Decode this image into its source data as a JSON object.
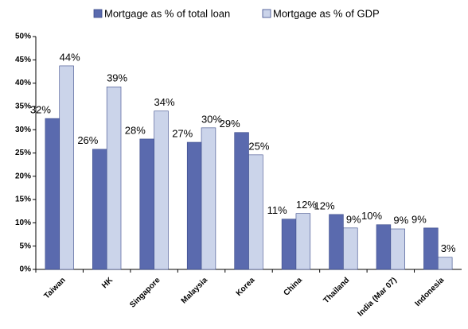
{
  "chart_data": {
    "type": "bar",
    "categories": [
      "Taiwan",
      "HK",
      "Singapore",
      "Malaysia",
      "Korea",
      "China",
      "Thailand",
      "India (Mar 07)",
      "Indonesia"
    ],
    "series": [
      {
        "name": "Mortgage as % of total loan",
        "color": "#5a6aae",
        "values": [
          32.4,
          25.8,
          28,
          27.3,
          29.4,
          10.8,
          11.8,
          9.6,
          8.9
        ],
        "value_labels": [
          "32%",
          "26%",
          "28%",
          "27%",
          "29%",
          "11%",
          "12%",
          "10%",
          "9%"
        ]
      },
      {
        "name": "Mortgage as % of GDP",
        "color": "#cbd4ea",
        "values": [
          43.7,
          39.2,
          34,
          30.4,
          24.6,
          12,
          8.9,
          8.7,
          2.6
        ],
        "value_labels": [
          "44%",
          "39%",
          "34%",
          "30%",
          "25%",
          "12%",
          "9%",
          "9%",
          "3%"
        ]
      }
    ],
    "ylim": [
      0,
      50
    ],
    "yticks": [
      {
        "value": 0,
        "label": "0%"
      },
      {
        "value": 5,
        "label": "5%"
      },
      {
        "value": 10,
        "label": "10%"
      },
      {
        "value": 15,
        "label": "15%"
      },
      {
        "value": 20,
        "label": "20%"
      },
      {
        "value": 25,
        "label": "25%"
      },
      {
        "value": 30,
        "label": "30%"
      },
      {
        "value": 35,
        "label": "35%"
      },
      {
        "value": 40,
        "label": "40%"
      },
      {
        "value": 45,
        "label": "45%"
      },
      {
        "value": 50,
        "label": "50%"
      }
    ],
    "legend": "top",
    "grid": false
  }
}
